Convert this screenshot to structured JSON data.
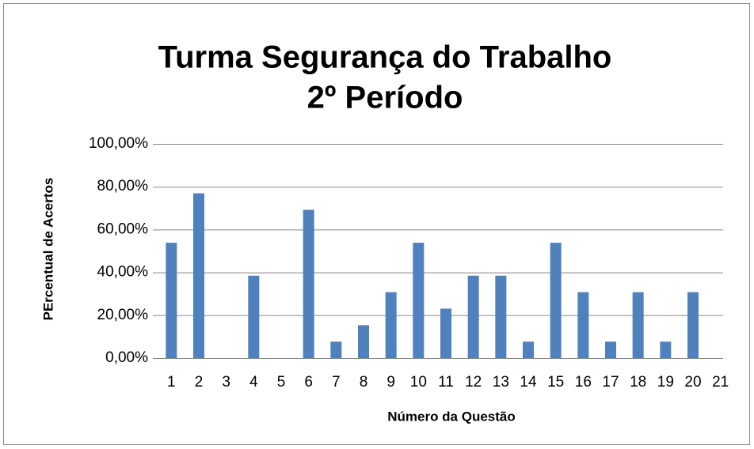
{
  "chart_data": {
    "type": "bar",
    "title": [
      "Turma Segurança do Trabalho",
      "2º Período"
    ],
    "x_label": "Número da Questão",
    "y_label": "PErcentual de Acertos",
    "categories": [
      "1",
      "2",
      "3",
      "4",
      "5",
      "6",
      "7",
      "8",
      "9",
      "10",
      "11",
      "12",
      "13",
      "14",
      "15",
      "16",
      "17",
      "18",
      "19",
      "20",
      "21"
    ],
    "values": [
      53.85,
      76.92,
      0,
      38.46,
      0,
      69.23,
      7.69,
      15.38,
      30.77,
      53.85,
      23.08,
      38.46,
      38.46,
      7.69,
      53.85,
      30.77,
      7.69,
      30.77,
      7.69,
      30.77,
      0
    ],
    "color": "#4f81bd",
    "ylim": [
      0,
      100
    ],
    "yticks": [
      {
        "value": 0,
        "label": "0,00%"
      },
      {
        "value": 20,
        "label": "20,00%"
      },
      {
        "value": 40,
        "label": "40,00%"
      },
      {
        "value": 60,
        "label": "60,00%"
      },
      {
        "value": 80,
        "label": "80,00%"
      },
      {
        "value": 100,
        "label": "100,00%"
      }
    ],
    "grid": true
  }
}
